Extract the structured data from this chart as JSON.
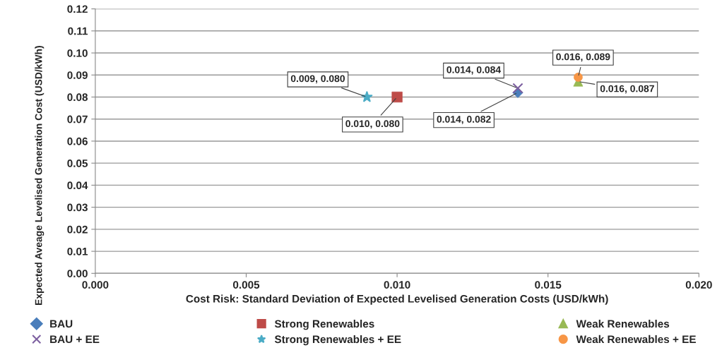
{
  "chart_data": {
    "type": "scatter",
    "xlabel": "Cost Risk: Standard Deviation of Expected Levelised Generation Costs (USD/kWh)",
    "ylabel": "Expected Aveage Levelised Generation Cost (USD/kWh)",
    "series": [
      {
        "name": "BAU",
        "color": "#4a7ebb",
        "marker": "diamond",
        "x": [
          0.014
        ],
        "values": [
          0.082
        ],
        "value_labels": [
          "0.014, 0.082"
        ]
      },
      {
        "name": "Strong Renewables",
        "color": "#be4b48",
        "marker": "square",
        "x": [
          0.01
        ],
        "values": [
          0.08
        ],
        "value_labels": [
          "0.010, 0.080"
        ]
      },
      {
        "name": "Weak Renewables",
        "color": "#98b954",
        "marker": "triangle",
        "x": [
          0.016
        ],
        "values": [
          0.087
        ],
        "value_labels": [
          "0.016, 0.087"
        ]
      },
      {
        "name": "BAU + EE",
        "color": "#7d60a0",
        "marker": "cross",
        "x": [
          0.014
        ],
        "values": [
          0.084
        ],
        "value_labels": [
          "0.014, 0.084"
        ]
      },
      {
        "name": "Strong Renewables + EE",
        "color": "#4bacc6",
        "marker": "star",
        "x": [
          0.009
        ],
        "values": [
          0.08
        ],
        "value_labels": [
          "0.009, 0.080"
        ]
      },
      {
        "name": "Weak Renewables + EE",
        "color": "#f79646",
        "marker": "circle",
        "x": [
          0.016
        ],
        "values": [
          0.089
        ],
        "value_labels": [
          "0.016, 0.089"
        ]
      }
    ],
    "xlim": [
      0,
      0.02
    ],
    "xticks": [
      {
        "value": 0,
        "label": "0.000"
      },
      {
        "value": 0.005,
        "label": "0.005"
      },
      {
        "value": 0.01,
        "label": "0.010"
      },
      {
        "value": 0.015,
        "label": "0.015"
      },
      {
        "value": 0.02,
        "label": "0.020"
      }
    ],
    "ylim": [
      0,
      0.12
    ],
    "yticks": [
      {
        "value": 0,
        "label": "0.00"
      },
      {
        "value": 0.01,
        "label": "0.01"
      },
      {
        "value": 0.02,
        "label": "0.02"
      },
      {
        "value": 0.03,
        "label": "0.03"
      },
      {
        "value": 0.04,
        "label": "0.04"
      },
      {
        "value": 0.05,
        "label": "0.05"
      },
      {
        "value": 0.06,
        "label": "0.06"
      },
      {
        "value": 0.07,
        "label": "0.07"
      },
      {
        "value": 0.08,
        "label": "0.08"
      },
      {
        "value": 0.09,
        "label": "0.09"
      },
      {
        "value": 0.1,
        "label": "0.10"
      },
      {
        "value": 0.11,
        "label": "0.11"
      },
      {
        "value": 0.12,
        "label": "0.12"
      }
    ],
    "grid": "y",
    "legend": "bottom"
  }
}
